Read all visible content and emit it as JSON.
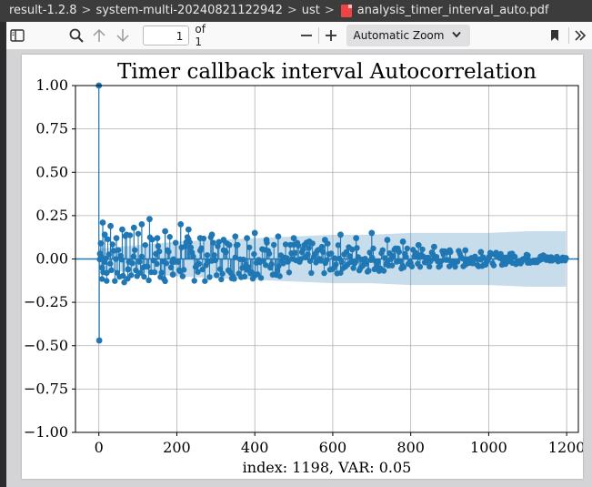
{
  "breadcrumb": {
    "items": [
      "result-1.2.8",
      "system-multi-20240821122942",
      "ust",
      "analysis_timer_interval_auto.pdf"
    ],
    "sep": ">"
  },
  "toolbar": {
    "page_value": "1",
    "page_total": "of 1",
    "zoom_minus": "—",
    "zoom_plus": "+",
    "zoom_value": "Automatic Zoom",
    "icons": {
      "sidebar": "sidebar-toggle-icon",
      "find": "search-icon",
      "prev": "arrow-up-icon",
      "next": "arrow-down-icon",
      "zoom_chevron": "chevron-down-icon",
      "bookmark": "bookmark-icon",
      "more": "double-chevron-right-icon"
    }
  },
  "chart_data": {
    "type": "scatter",
    "title": "Timer callback interval Autocorrelation",
    "xlabel": "index: 1198, VAR: 0.05",
    "ylabel": "",
    "xlim": [
      -60,
      1230
    ],
    "ylim": [
      -1.0,
      1.0
    ],
    "xticks": [
      "0",
      "200",
      "400",
      "600",
      "800",
      "1000",
      "1200"
    ],
    "xtick_values": [
      0,
      200,
      400,
      600,
      800,
      1000,
      1200
    ],
    "yticks": [
      "1.00",
      "0.75",
      "0.50",
      "0.25",
      "0.00",
      "−0.25",
      "−0.50",
      "−0.75",
      "−1.00"
    ],
    "ytick_values": [
      1.0,
      0.75,
      0.5,
      0.25,
      0.0,
      -0.25,
      -0.5,
      -0.75,
      -1.0
    ],
    "grid": true,
    "series": [
      {
        "style": "stem",
        "color": "#1f77b4",
        "points": [
          [
            0,
            1.0
          ],
          [
            1,
            -0.47
          ],
          [
            3,
            0.03
          ],
          [
            5,
            0.09
          ],
          [
            8,
            -0.05
          ],
          [
            10,
            0.21
          ],
          [
            15,
            0.14
          ],
          [
            20,
            -0.08
          ],
          [
            30,
            0.19
          ],
          [
            45,
            0.12
          ],
          [
            60,
            0.17
          ],
          [
            75,
            -0.06
          ],
          [
            90,
            0.18
          ],
          [
            110,
            0.2
          ],
          [
            130,
            0.23
          ],
          [
            150,
            0.12
          ],
          [
            170,
            0.16
          ],
          [
            190,
            -0.09
          ],
          [
            210,
            0.2
          ],
          [
            230,
            0.17
          ],
          [
            260,
            0.12
          ],
          [
            290,
            0.14
          ],
          [
            320,
            0.11
          ],
          [
            350,
            0.13
          ],
          [
            380,
            0.12
          ],
          [
            400,
            0.15
          ],
          [
            430,
            0.11
          ],
          [
            460,
            0.13
          ],
          [
            500,
            0.12
          ],
          [
            540,
            0.1
          ],
          [
            580,
            0.11
          ],
          [
            620,
            0.14
          ],
          [
            660,
            0.12
          ],
          [
            700,
            0.15
          ],
          [
            740,
            0.11
          ],
          [
            780,
            0.1
          ],
          [
            820,
            0.08
          ],
          [
            860,
            0.07
          ],
          [
            900,
            0.05
          ],
          [
            940,
            0.05
          ],
          [
            980,
            0.04
          ],
          [
            1020,
            0.03
          ],
          [
            1060,
            0.03
          ],
          [
            1100,
            0.02
          ],
          [
            1140,
            0.02
          ],
          [
            1198,
            0.005
          ]
        ],
        "envelope_summary": "dense stems between approx ±0.15 near lag 10, narrowing to ±0.01 at lag 1198"
      }
    ],
    "confidence_band": {
      "color": "#1f77b4",
      "opacity": 0.25,
      "x": [
        1,
        100,
        200,
        300,
        400,
        500,
        600,
        700,
        800,
        900,
        1000,
        1100,
        1198
      ],
      "upper": [
        0.06,
        0.08,
        0.1,
        0.11,
        0.12,
        0.13,
        0.14,
        0.14,
        0.15,
        0.15,
        0.15,
        0.16,
        0.16
      ],
      "lower": [
        -0.06,
        -0.08,
        -0.1,
        -0.11,
        -0.12,
        -0.13,
        -0.14,
        -0.14,
        -0.15,
        -0.15,
        -0.15,
        -0.16,
        -0.16
      ]
    }
  }
}
